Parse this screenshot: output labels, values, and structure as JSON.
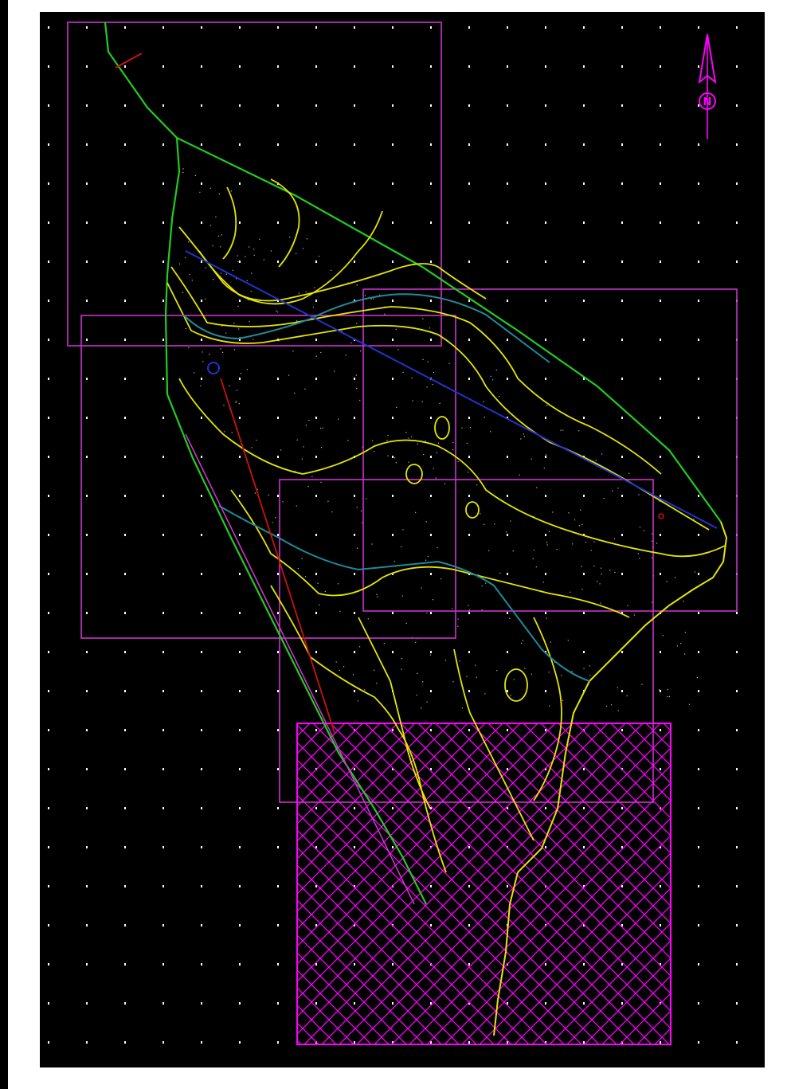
{
  "drawing": {
    "north_arrow": {
      "letter": "N",
      "color": "#ff00ff"
    },
    "colors": {
      "background": "#000000",
      "grid_points": "#ffffff",
      "viewport_frames": "#cc33cc",
      "hatch": "#ff00ff",
      "boundary": "#22cc22",
      "contours": "#e6e600",
      "stream": "#1f8a9a",
      "section_line_blue": "#2233cc",
      "section_line_red": "#cc1111"
    },
    "layers": [
      "grid-points",
      "viewport-frames",
      "hatched-region",
      "site-boundary",
      "contour-lines",
      "stream-line",
      "section-lines",
      "north-arrow"
    ]
  }
}
